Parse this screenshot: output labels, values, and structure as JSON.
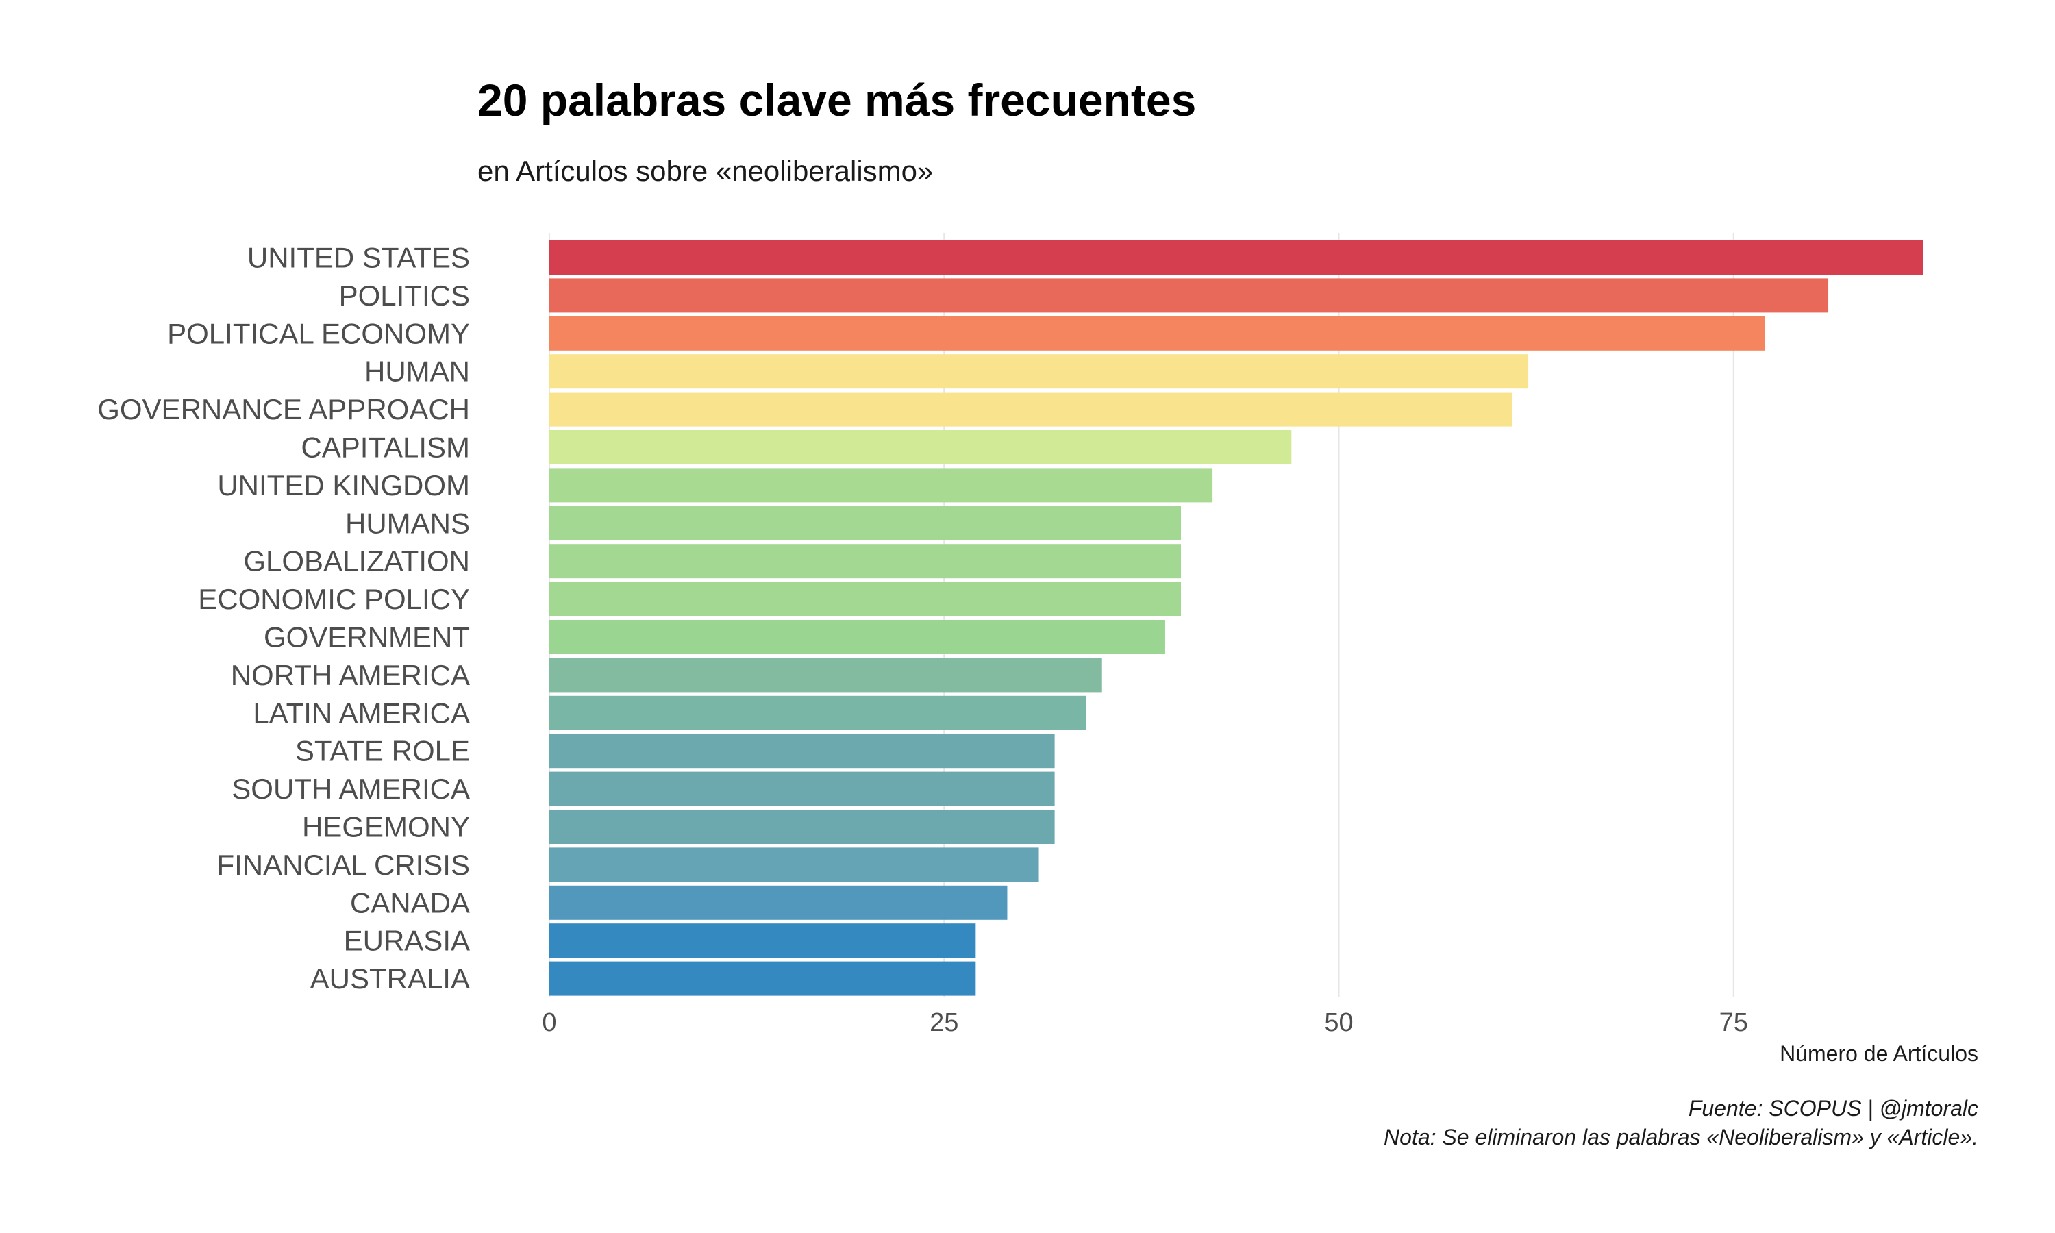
{
  "chart_data": {
    "type": "bar",
    "orientation": "horizontal",
    "title": "20 palabras clave más frecuentes",
    "subtitle": "en Artículos sobre «neoliberalismo»",
    "xlabel": "Número de Artículos",
    "ylabel": "",
    "xlim": [
      0,
      90
    ],
    "x_ticks": [
      0,
      25,
      50,
      75
    ],
    "grid": "vertical major gridlines",
    "legend": "none",
    "caption": [
      "Fuente: SCOPUS | @jmtoralc",
      "Nota: Se eliminaron las palabras «Neoliberalism» y «Article»."
    ],
    "categories": [
      "UNITED STATES",
      "POLITICS",
      "POLITICAL ECONOMY",
      "HUMAN",
      "GOVERNANCE APPROACH",
      "CAPITALISM",
      "UNITED KINGDOM",
      "HUMANS",
      "GLOBALIZATION",
      "ECONOMIC POLICY",
      "GOVERNMENT",
      "NORTH AMERICA",
      "LATIN AMERICA",
      "STATE ROLE",
      "SOUTH AMERICA",
      "HEGEMONY",
      "FINANCIAL CRISIS",
      "CANADA",
      "EURASIA",
      "AUSTRALIA"
    ],
    "values": [
      87,
      81,
      77,
      62,
      61,
      47,
      42,
      40,
      40,
      40,
      39,
      35,
      34,
      32,
      32,
      32,
      31,
      29,
      27,
      27
    ],
    "colors": [
      "#D53E4F",
      "#E8685A",
      "#F4855E",
      "#FAE38D",
      "#FAE38D",
      "#D0EA95",
      "#A8DA92",
      "#A2D892",
      "#A2D892",
      "#A2D892",
      "#9AD592",
      "#82BBA0",
      "#7AB6A6",
      "#6CA9AE",
      "#6CA9AE",
      "#6CA9AE",
      "#64A4B4",
      "#5297BC",
      "#3489C1",
      "#3489C1"
    ],
    "gridline_color": "#e6e6e6",
    "label_color": "#4d4d4d"
  }
}
